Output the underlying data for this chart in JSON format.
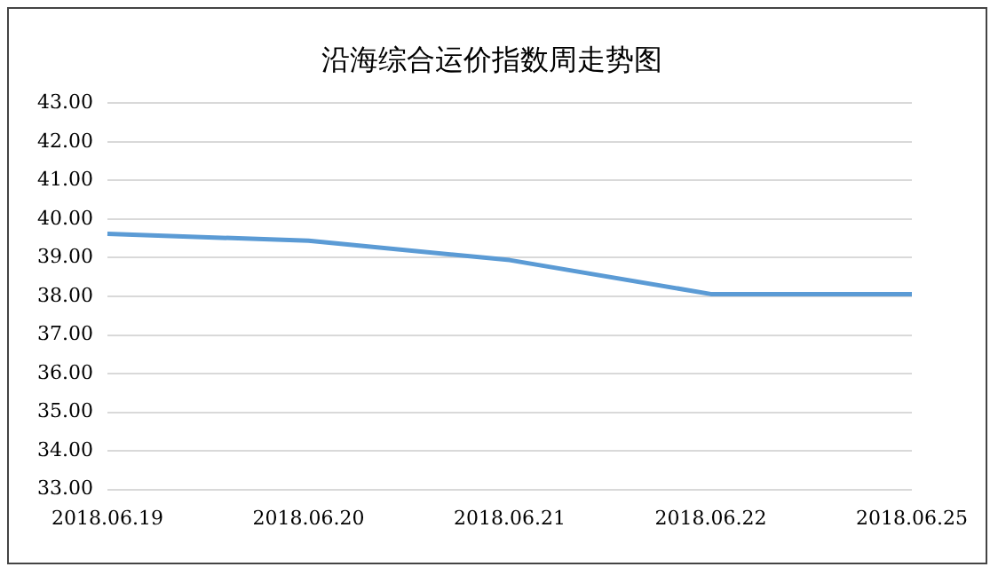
{
  "chart_data": {
    "type": "line",
    "title": "沿海综合运价指数周走势图",
    "categories": [
      "2018.06.19",
      "2018.06.20",
      "2018.06.21",
      "2018.06.22",
      "2018.06.25"
    ],
    "series": [
      {
        "color": "#5b9bd5",
        "values": [
          39.62,
          39.44,
          38.94,
          38.06,
          38.06
        ]
      }
    ],
    "ylim": [
      33,
      43
    ],
    "yticks": [
      {
        "value": 33,
        "label": "33.00"
      },
      {
        "value": 34,
        "label": "34.00"
      },
      {
        "value": 35,
        "label": "35.00"
      },
      {
        "value": 36,
        "label": "36.00"
      },
      {
        "value": 37,
        "label": "37.00"
      },
      {
        "value": 38,
        "label": "38.00"
      },
      {
        "value": 39,
        "label": "39.00"
      },
      {
        "value": 40,
        "label": "40.00"
      },
      {
        "value": 41,
        "label": "41.00"
      },
      {
        "value": 42,
        "label": "42.00"
      },
      {
        "value": 43,
        "label": "43.00"
      }
    ],
    "grid": "y",
    "legend": false,
    "marker": "none",
    "line_style": "solid"
  }
}
